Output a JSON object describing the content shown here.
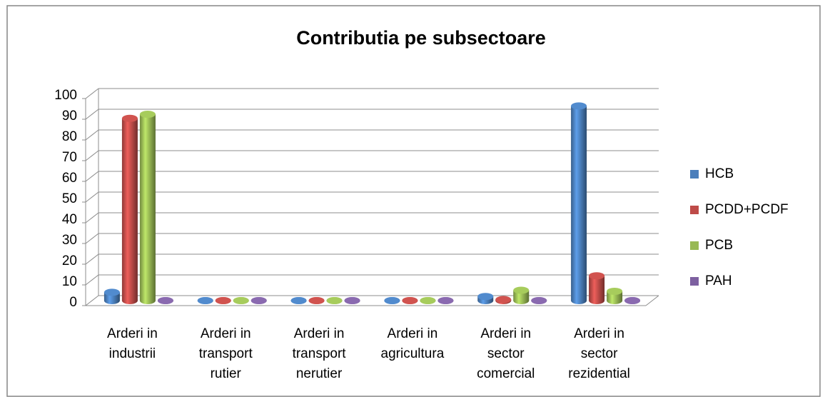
{
  "chart_data": {
    "type": "bar3d",
    "title": "Contributia pe subsectoare",
    "categories": [
      "Arderi in industrii",
      "Arderi in transport rutier",
      "Arderi in transport nerutier",
      "Arderi in agricultura",
      "Arderi in sector comercial",
      "Arderi in sector rezidential"
    ],
    "series": [
      {
        "name": "HCB",
        "color": "#4a7ebb",
        "values": [
          4,
          0,
          0,
          0,
          2,
          94
        ]
      },
      {
        "name": "PCDD+PCDF",
        "color": "#be4b48",
        "values": [
          88,
          0,
          0,
          0,
          0.5,
          12
        ]
      },
      {
        "name": "PCB",
        "color": "#98b954",
        "values": [
          90,
          0,
          0,
          0,
          5,
          4.5
        ]
      },
      {
        "name": "PAH",
        "color": "#7d60a0",
        "values": [
          0,
          0,
          0,
          0,
          0,
          0
        ]
      }
    ],
    "ylim": [
      0,
      100
    ],
    "yticks": [
      0,
      10,
      20,
      30,
      40,
      50,
      60,
      70,
      80,
      90,
      100
    ],
    "grid": true,
    "legend": "right"
  }
}
